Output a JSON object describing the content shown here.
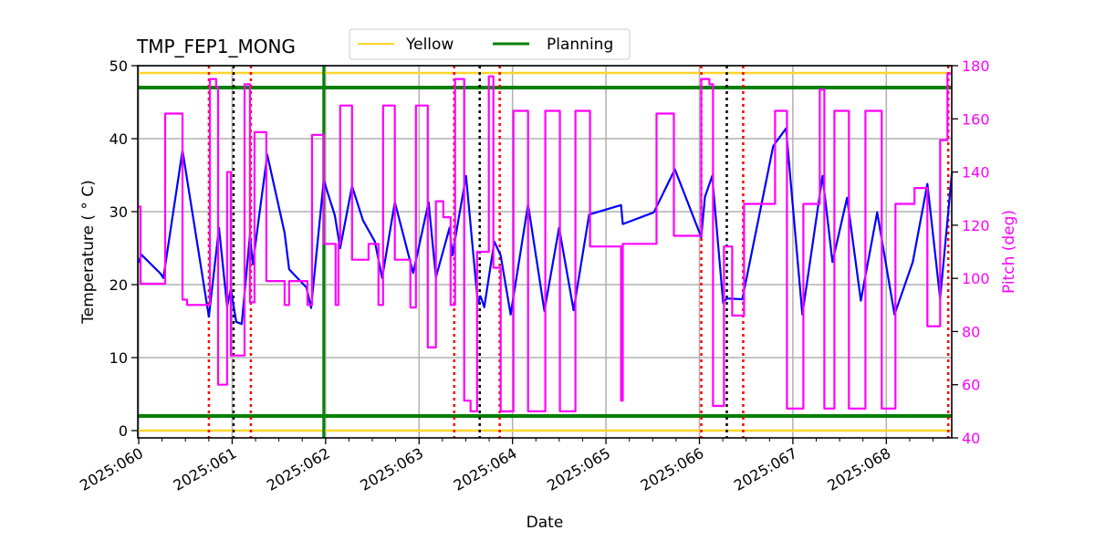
{
  "chart_data": {
    "type": "line",
    "title": "TMP_FEP1_MONG",
    "xlabel": "Date",
    "ylabel": "Temperature ( ° C)",
    "ylabel_right": "Pitch (deg)",
    "xlim": [
      59.99,
      68.7
    ],
    "ylim": [
      -1,
      50
    ],
    "ylim_right": [
      40,
      180
    ],
    "grid": true,
    "legend_placement": "top-center",
    "x_ticks": [
      {
        "value": 60,
        "label": "2025:060"
      },
      {
        "value": 61,
        "label": "2025:061"
      },
      {
        "value": 62,
        "label": "2025:062"
      },
      {
        "value": 63,
        "label": "2025:063"
      },
      {
        "value": 64,
        "label": "2025:064"
      },
      {
        "value": 65,
        "label": "2025:065"
      },
      {
        "value": 66,
        "label": "2025:066"
      },
      {
        "value": 67,
        "label": "2025:067"
      },
      {
        "value": 68,
        "label": "2025:068"
      }
    ],
    "y_ticks": [
      0,
      10,
      20,
      30,
      40,
      50
    ],
    "y_ticks_right": [
      40,
      60,
      80,
      100,
      120,
      140,
      160,
      180
    ],
    "legend": [
      {
        "label": "Yellow",
        "color": "#ffd42a"
      },
      {
        "label": "Planning",
        "color": "#008000"
      }
    ],
    "limit_lines": [
      {
        "legend": "Yellow",
        "value": 49,
        "color": "#ffd42a"
      },
      {
        "legend": "Yellow",
        "value": 0,
        "color": "#ffd42a"
      },
      {
        "legend": "Planning",
        "value": 47,
        "color": "#008000"
      },
      {
        "legend": "Planning",
        "value": 2,
        "color": "#008000"
      }
    ],
    "vertical_lines": [
      {
        "x": 61.98,
        "color": "#008000",
        "style": "solid"
      },
      {
        "x": 60.751,
        "color": "#ff0000",
        "style": "dotted"
      },
      {
        "x": 61.2,
        "color": "#ff0000",
        "style": "dotted"
      },
      {
        "x": 63.376,
        "color": "#ff0000",
        "style": "dotted"
      },
      {
        "x": 63.863,
        "color": "#ff0000",
        "style": "dotted"
      },
      {
        "x": 66.02,
        "color": "#ff0000",
        "style": "dotted"
      },
      {
        "x": 66.468,
        "color": "#ff0000",
        "style": "dotted"
      },
      {
        "x": 68.663,
        "color": "#ff0000",
        "style": "dotted"
      },
      {
        "x": 61.015,
        "color": "#000000",
        "style": "dotted"
      },
      {
        "x": 63.649,
        "color": "#000000",
        "style": "dotted"
      },
      {
        "x": 66.293,
        "color": "#000000",
        "style": "dotted"
      }
    ],
    "series": [
      {
        "axis": "left",
        "color": "#0000ff",
        "step": false,
        "points": [
          [
            60.0,
            23.0
          ],
          [
            60.029,
            24.1
          ],
          [
            60.234,
            21.5
          ],
          [
            60.263,
            20.9
          ],
          [
            60.468,
            38.4
          ],
          [
            60.751,
            15.6
          ],
          [
            60.859,
            27.8
          ],
          [
            60.946,
            17.0
          ],
          [
            60.985,
            19.4
          ],
          [
            61.044,
            14.9
          ],
          [
            61.102,
            14.6
          ],
          [
            61.19,
            26.8
          ],
          [
            61.22,
            22.8
          ],
          [
            61.376,
            37.8
          ],
          [
            61.561,
            27.1
          ],
          [
            61.61,
            22.1
          ],
          [
            61.795,
            19.6
          ],
          [
            61.844,
            16.8
          ],
          [
            61.98,
            34.3
          ],
          [
            62.098,
            29.5
          ],
          [
            62.156,
            25.0
          ],
          [
            62.283,
            33.5
          ],
          [
            62.4,
            28.8
          ],
          [
            62.527,
            25.9
          ],
          [
            62.605,
            20.9
          ],
          [
            62.741,
            31.3
          ],
          [
            62.937,
            21.6
          ],
          [
            63.102,
            31.3
          ],
          [
            63.18,
            21.0
          ],
          [
            63.327,
            27.8
          ],
          [
            63.356,
            24.0
          ],
          [
            63.502,
            34.9
          ],
          [
            63.629,
            17.4
          ],
          [
            63.659,
            18.4
          ],
          [
            63.698,
            16.9
          ],
          [
            63.805,
            25.9
          ],
          [
            63.873,
            24.0
          ],
          [
            63.98,
            15.9
          ],
          [
            64.166,
            31.0
          ],
          [
            64.341,
            16.4
          ],
          [
            64.498,
            27.8
          ],
          [
            64.654,
            16.5
          ],
          [
            64.82,
            29.6
          ],
          [
            65.161,
            30.9
          ],
          [
            65.18,
            28.3
          ],
          [
            65.512,
            29.9
          ],
          [
            65.737,
            35.8
          ],
          [
            66.02,
            26.5
          ],
          [
            66.059,
            32.0
          ],
          [
            66.137,
            34.9
          ],
          [
            66.254,
            17.5
          ],
          [
            66.293,
            18.1
          ],
          [
            66.459,
            18.0
          ],
          [
            66.79,
            39.0
          ],
          [
            66.927,
            41.4
          ],
          [
            67.102,
            15.9
          ],
          [
            67.317,
            34.9
          ],
          [
            67.424,
            23.1
          ],
          [
            67.58,
            31.9
          ],
          [
            67.727,
            17.8
          ],
          [
            67.902,
            29.9
          ],
          [
            68.088,
            15.9
          ],
          [
            68.283,
            23.1
          ],
          [
            68.439,
            33.8
          ],
          [
            68.576,
            18.1
          ],
          [
            68.702,
            35.3
          ]
        ]
      },
      {
        "axis": "right",
        "color": "#ff00ff",
        "step": true,
        "points": [
          [
            60.0,
            127
          ],
          [
            60.02,
            98
          ],
          [
            60.283,
            162
          ],
          [
            60.468,
            92
          ],
          [
            60.517,
            90
          ],
          [
            60.761,
            175
          ],
          [
            60.829,
            172
          ],
          [
            60.849,
            60
          ],
          [
            60.946,
            140
          ],
          [
            60.985,
            71
          ],
          [
            61.132,
            173
          ],
          [
            61.19,
            91
          ],
          [
            61.239,
            155
          ],
          [
            61.366,
            99
          ],
          [
            61.561,
            90
          ],
          [
            61.61,
            99
          ],
          [
            61.805,
            90
          ],
          [
            61.854,
            154
          ],
          [
            61.98,
            113
          ],
          [
            62.107,
            90
          ],
          [
            62.137,
            113
          ],
          [
            62.156,
            165
          ],
          [
            62.283,
            107
          ],
          [
            62.459,
            113
          ],
          [
            62.566,
            90
          ],
          [
            62.615,
            165
          ],
          [
            62.741,
            107
          ],
          [
            62.907,
            89
          ],
          [
            62.966,
            165
          ],
          [
            63.093,
            74
          ],
          [
            63.18,
            129
          ],
          [
            63.259,
            123
          ],
          [
            63.337,
            90
          ],
          [
            63.385,
            175
          ],
          [
            63.483,
            54
          ],
          [
            63.551,
            50
          ],
          [
            63.62,
            110
          ],
          [
            63.746,
            176
          ],
          [
            63.795,
            104
          ],
          [
            63.873,
            50
          ],
          [
            64.01,
            163
          ],
          [
            64.166,
            50
          ],
          [
            64.351,
            163
          ],
          [
            64.507,
            50
          ],
          [
            64.673,
            163
          ],
          [
            64.829,
            112
          ],
          [
            65.161,
            54
          ],
          [
            65.18,
            113
          ],
          [
            65.541,
            162
          ],
          [
            65.727,
            116
          ],
          [
            66.02,
            175
          ],
          [
            66.107,
            173
          ],
          [
            66.146,
            52
          ],
          [
            66.263,
            112
          ],
          [
            66.351,
            86
          ],
          [
            66.478,
            128
          ],
          [
            66.81,
            163
          ],
          [
            66.937,
            51
          ],
          [
            67.112,
            128
          ],
          [
            67.288,
            171
          ],
          [
            67.337,
            51
          ],
          [
            67.444,
            163
          ],
          [
            67.6,
            51
          ],
          [
            67.776,
            163
          ],
          [
            67.951,
            51
          ],
          [
            68.098,
            128
          ],
          [
            68.302,
            134
          ],
          [
            68.439,
            82
          ],
          [
            68.576,
            152
          ],
          [
            68.654,
            177
          ],
          [
            68.702,
            177
          ]
        ]
      }
    ]
  }
}
